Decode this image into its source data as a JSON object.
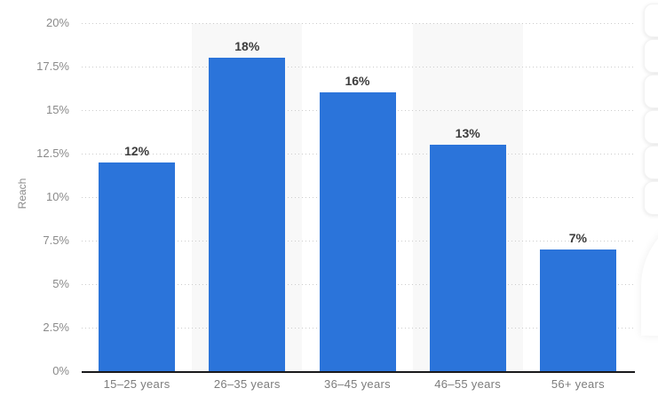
{
  "chart_data": {
    "type": "bar",
    "title": "",
    "ylabel": "Reach",
    "categories": [
      "15–25 years",
      "26–35 years",
      "36–45 years",
      "46–55 years",
      "56+ years"
    ],
    "values": [
      12,
      18,
      16,
      13,
      7
    ],
    "bar_labels": [
      "12%",
      "18%",
      "16%",
      "13%",
      "7%"
    ],
    "ylim": [
      0,
      20
    ],
    "yticks": [
      0,
      2.5,
      5,
      7.5,
      10,
      12.5,
      15,
      17.5,
      20
    ],
    "ytick_labels": [
      "0%",
      "2.5%",
      "5%",
      "7.5%",
      "10%",
      "12.5%",
      "15%",
      "17.5%",
      "20%"
    ],
    "grid": "horizontal-dotted",
    "legend": "none",
    "alternating_band_columns": [
      1,
      3
    ],
    "colors": {
      "bar": "#2b74da",
      "band": "#f8f8f8",
      "grid": "#cccccc",
      "axis_line": "#19191b",
      "tick_text": "#8a8a8a",
      "x_label_text": "#7d7d7d",
      "bar_label_text": "#3c3c3c"
    }
  },
  "right_edge_toolbar": {
    "visible_button_count": 6
  }
}
